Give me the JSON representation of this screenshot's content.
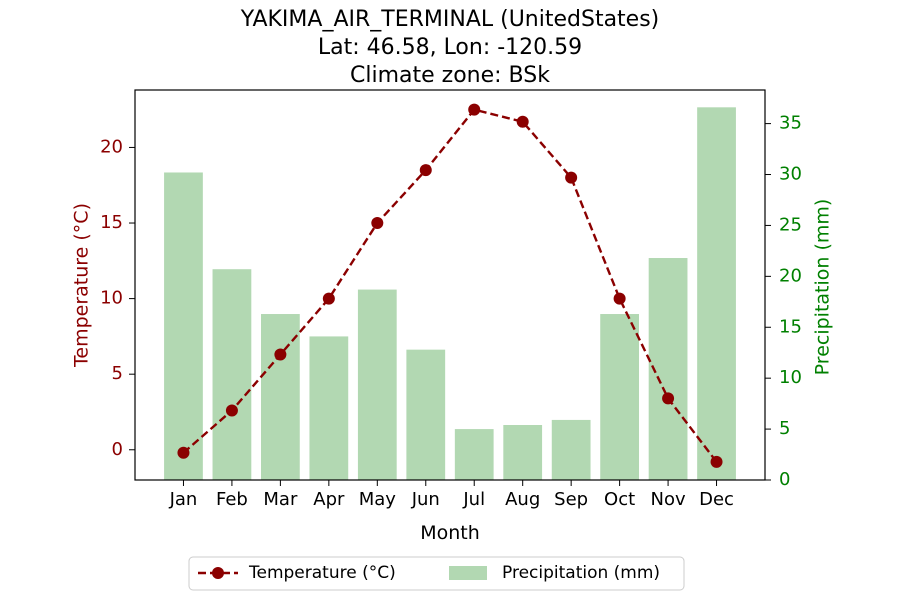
{
  "chart_data": {
    "type": "bar+line",
    "title": [
      "YAKIMA_AIR_TERMINAL (UnitedStates)",
      "Lat: 46.58, Lon: -120.59",
      "Climate zone: BSk"
    ],
    "xlabel": "Month",
    "categories": [
      "Jan",
      "Feb",
      "Mar",
      "Apr",
      "May",
      "Jun",
      "Jul",
      "Aug",
      "Sep",
      "Oct",
      "Nov",
      "Dec"
    ],
    "temperature": {
      "name": "Temperature (°C)",
      "axis_label": "Temperature (°C)",
      "values": [
        -0.2,
        2.6,
        6.3,
        10.0,
        15.0,
        18.5,
        22.5,
        21.7,
        18.0,
        10.0,
        3.4,
        -0.8
      ],
      "ylim": [
        -2,
        23.8
      ],
      "ticks": [
        0,
        5,
        10,
        15,
        20
      ],
      "color": "#8b0000",
      "marker": "circle",
      "line_style": "dashed"
    },
    "precipitation": {
      "name": "Precipitation (mm)",
      "axis_label": "Precipitation (mm)",
      "values": [
        30.2,
        20.7,
        16.3,
        14.1,
        18.7,
        12.8,
        5.0,
        5.4,
        5.9,
        16.3,
        21.8,
        36.6
      ],
      "ylim": [
        0,
        38.3
      ],
      "ticks": [
        0,
        5,
        10,
        15,
        20,
        25,
        30,
        35
      ],
      "color": "#b2d8b2",
      "tick_color": "#008000"
    },
    "legend": {
      "placement": "bottom-center",
      "entries": [
        "Temperature (°C)",
        "Precipitation (mm)"
      ]
    },
    "grid": false
  }
}
